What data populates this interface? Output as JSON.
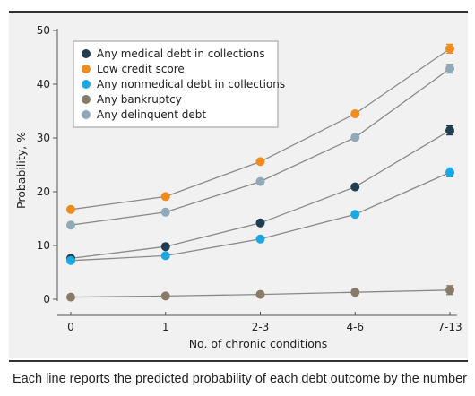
{
  "caption": "Each line reports the predicted probability of each debt outcome by the number",
  "chart_data": {
    "type": "line",
    "categories": [
      "0",
      "1",
      "2-3",
      "4-6",
      "7-13"
    ],
    "xlabel": "No. of chronic conditions",
    "ylabel": "Probability, %",
    "ylim": [
      0,
      50
    ],
    "yticks": [
      0,
      10,
      20,
      30,
      40,
      50
    ],
    "grid": false,
    "legend_position": "top-left",
    "line_color": "#8a8a8a",
    "series": [
      {
        "name": "Any medical debt in collections",
        "color": "#1f3e52",
        "values": [
          7.6,
          9.8,
          14.2,
          20.9,
          31.4
        ]
      },
      {
        "name": "Low credit score",
        "color": "#f08c1e",
        "values": [
          16.7,
          19.1,
          25.6,
          34.5,
          46.6
        ]
      },
      {
        "name": "Any nonmedical debt in collections",
        "color": "#1ca7e0",
        "values": [
          7.2,
          8.1,
          11.2,
          15.8,
          23.6
        ]
      },
      {
        "name": "Any bankruptcy",
        "color": "#8a7a68",
        "values": [
          0.4,
          0.6,
          0.9,
          1.3,
          1.7
        ]
      },
      {
        "name": "Any delinquent debt",
        "color": "#8fa9b6",
        "values": [
          13.8,
          16.2,
          21.9,
          30.1,
          42.9
        ]
      }
    ]
  }
}
